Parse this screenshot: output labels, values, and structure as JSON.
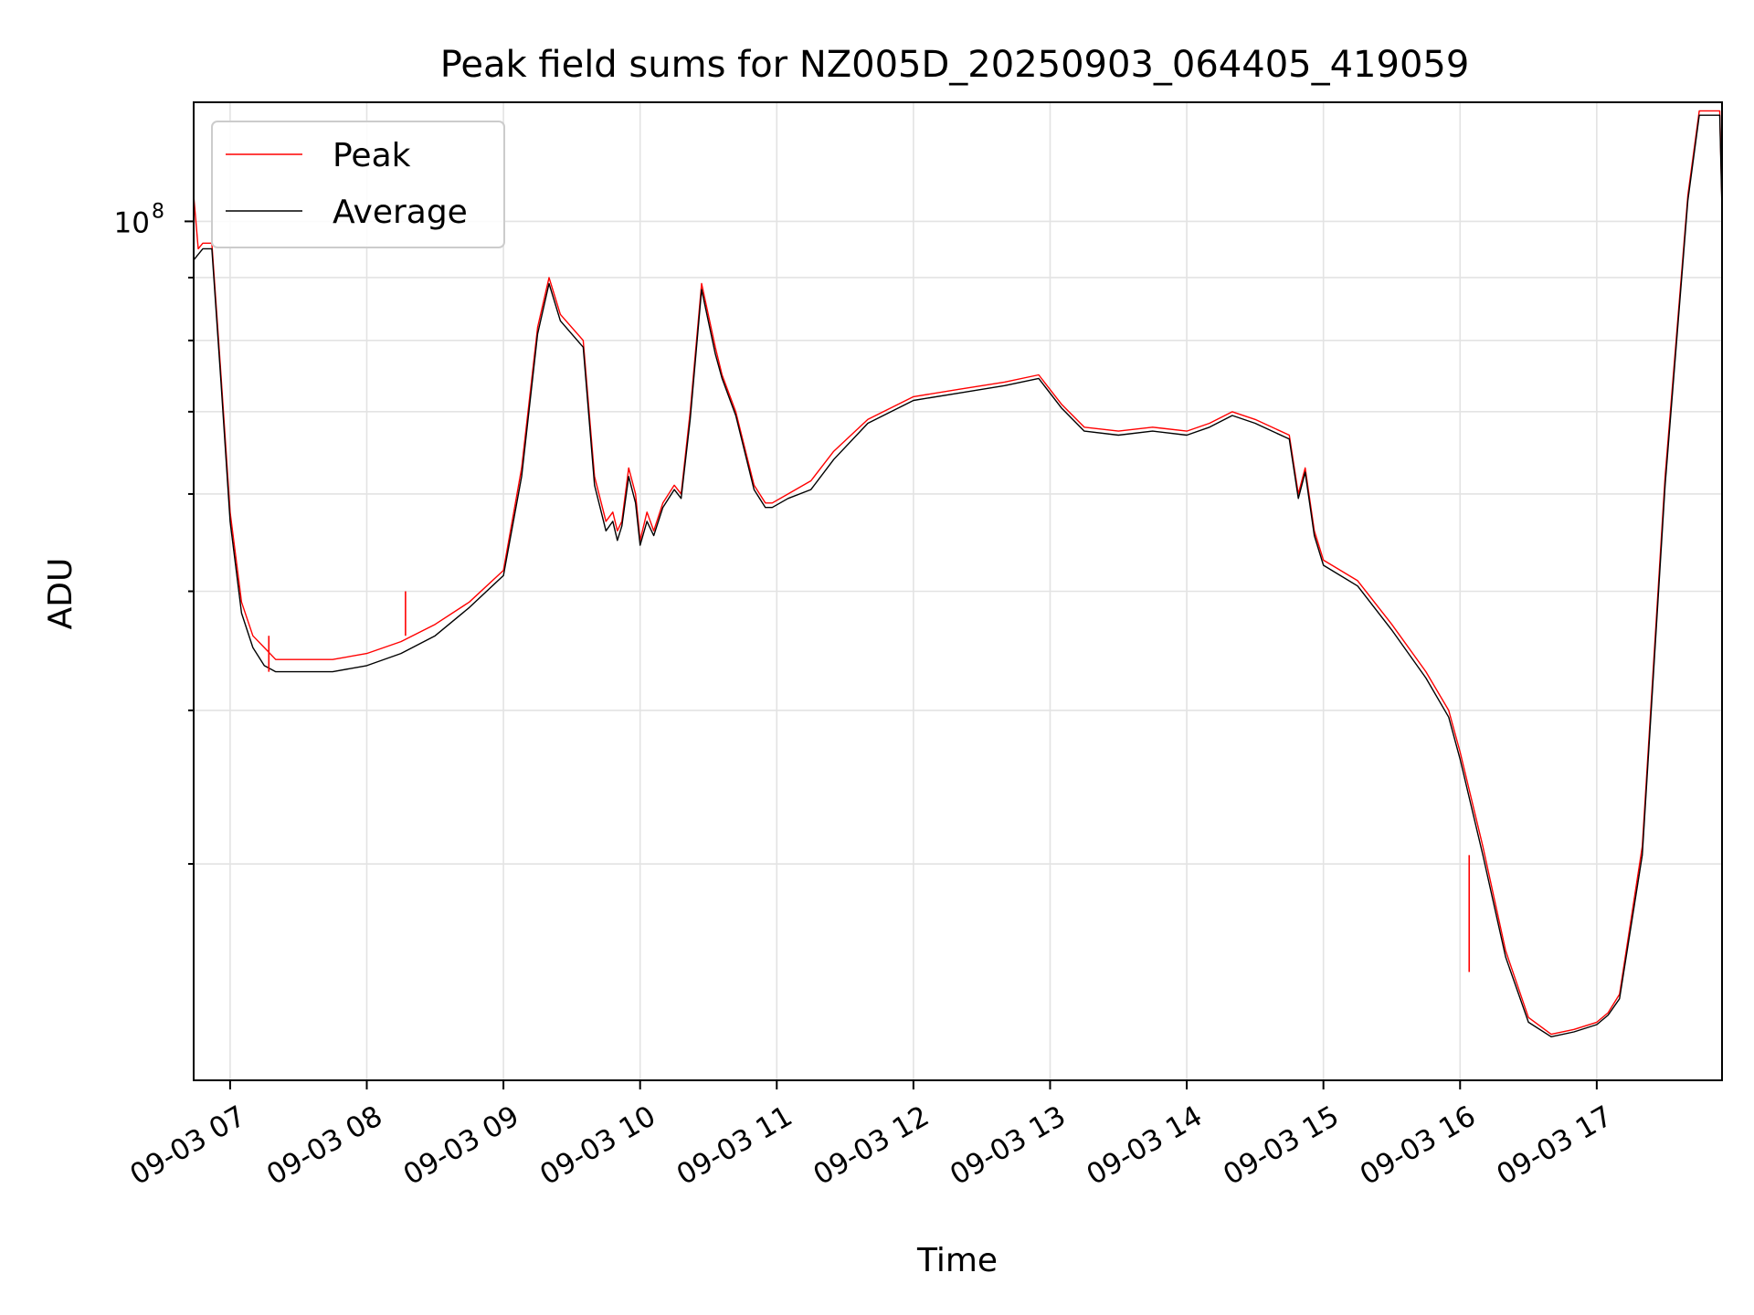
{
  "chart_data": {
    "type": "line",
    "title": "Peak field sums for NZ005D_20250903_064405_419059",
    "xlabel": "Time",
    "ylabel": "ADU",
    "yscale": "log",
    "grid": true,
    "legend_position": "top-left",
    "xlim": [
      "2025-09-03 06:44",
      "2025-09-03 17:55"
    ],
    "ylim": [
      20000000,
      125000000
    ],
    "x_tick_labels": [
      "09-03 07",
      "09-03 08",
      "09-03 09",
      "09-03 10",
      "09-03 11",
      "09-03 12",
      "09-03 13",
      "09-03 14",
      "09-03 15",
      "09-03 16",
      "09-03 17"
    ],
    "x_ticks": [
      "2025-09-03 07:00",
      "2025-09-03 08:00",
      "2025-09-03 09:00",
      "2025-09-03 10:00",
      "2025-09-03 11:00",
      "2025-09-03 12:00",
      "2025-09-03 13:00",
      "2025-09-03 14:00",
      "2025-09-03 15:00",
      "2025-09-03 16:00",
      "2025-09-03 17:00"
    ],
    "y_tick_base": "10",
    "y_tick_exponent": "8",
    "y_tick_value": 100000000,
    "y_minor_ticks": [
      30000000,
      40000000,
      50000000,
      60000000,
      70000000,
      80000000,
      90000000
    ],
    "x": [
      "2025-09-03 06:44",
      "2025-09-03 06:46",
      "2025-09-03 06:48",
      "2025-09-03 06:52",
      "2025-09-03 06:56",
      "2025-09-03 07:00",
      "2025-09-03 07:05",
      "2025-09-03 07:10",
      "2025-09-03 07:15",
      "2025-09-03 07:20",
      "2025-09-03 07:30",
      "2025-09-03 07:45",
      "2025-09-03 08:00",
      "2025-09-03 08:15",
      "2025-09-03 08:30",
      "2025-09-03 08:45",
      "2025-09-03 09:00",
      "2025-09-03 09:08",
      "2025-09-03 09:15",
      "2025-09-03 09:20",
      "2025-09-03 09:25",
      "2025-09-03 09:35",
      "2025-09-03 09:40",
      "2025-09-03 09:45",
      "2025-09-03 09:48",
      "2025-09-03 09:50",
      "2025-09-03 09:52",
      "2025-09-03 09:55",
      "2025-09-03 09:58",
      "2025-09-03 10:00",
      "2025-09-03 10:03",
      "2025-09-03 10:06",
      "2025-09-03 10:10",
      "2025-09-03 10:15",
      "2025-09-03 10:18",
      "2025-09-03 10:22",
      "2025-09-03 10:27",
      "2025-09-03 10:33",
      "2025-09-03 10:36",
      "2025-09-03 10:42",
      "2025-09-03 10:50",
      "2025-09-03 10:55",
      "2025-09-03 10:58",
      "2025-09-03 11:05",
      "2025-09-03 11:15",
      "2025-09-03 11:25",
      "2025-09-03 11:40",
      "2025-09-03 12:00",
      "2025-09-03 12:20",
      "2025-09-03 12:40",
      "2025-09-03 12:55",
      "2025-09-03 13:05",
      "2025-09-03 13:15",
      "2025-09-03 13:30",
      "2025-09-03 13:45",
      "2025-09-03 14:00",
      "2025-09-03 14:10",
      "2025-09-03 14:20",
      "2025-09-03 14:30",
      "2025-09-03 14:45",
      "2025-09-03 14:49",
      "2025-09-03 14:52",
      "2025-09-03 14:56",
      "2025-09-03 15:00",
      "2025-09-03 15:15",
      "2025-09-03 15:30",
      "2025-09-03 15:45",
      "2025-09-03 15:55",
      "2025-09-03 16:00",
      "2025-09-03 16:10",
      "2025-09-03 16:20",
      "2025-09-03 16:30",
      "2025-09-03 16:40",
      "2025-09-03 16:50",
      "2025-09-03 17:00",
      "2025-09-03 17:05",
      "2025-09-03 17:10",
      "2025-09-03 17:20",
      "2025-09-03 17:30",
      "2025-09-03 17:40",
      "2025-09-03 17:45",
      "2025-09-03 17:50",
      "2025-09-03 17:54",
      "2025-09-03 17:55"
    ],
    "series": [
      {
        "name": "Peak",
        "color": "#ff0000",
        "values": [
          105000000,
          95000000,
          96000000,
          96000000,
          75000000,
          58000000,
          49000000,
          46000000,
          45000000,
          44000000,
          44000000,
          44000000,
          44500000,
          45500000,
          47000000,
          49000000,
          52000000,
          63000000,
          82000000,
          90000000,
          84000000,
          80000000,
          62000000,
          57000000,
          58000000,
          56000000,
          57000000,
          63000000,
          60000000,
          55000000,
          58000000,
          56000000,
          59000000,
          61000000,
          60000000,
          70000000,
          89000000,
          79000000,
          75000000,
          70000000,
          61000000,
          59000000,
          59000000,
          60000000,
          61500000,
          65000000,
          69000000,
          72000000,
          73000000,
          74000000,
          75000000,
          71000000,
          68000000,
          67500000,
          68000000,
          67500000,
          68500000,
          70000000,
          69000000,
          67000000,
          60000000,
          63000000,
          56000000,
          53000000,
          51000000,
          47000000,
          43000000,
          40000000,
          37000000,
          31000000,
          25500000,
          22500000,
          21800000,
          22000000,
          22300000,
          22700000,
          23500000,
          31000000,
          62000000,
          105000000,
          123000000,
          123000000,
          123000000,
          103000000
        ]
      },
      {
        "name": "Average",
        "color": "#000000",
        "values": [
          93000000,
          94000000,
          95000000,
          95000000,
          74000000,
          57000000,
          48000000,
          45000000,
          43500000,
          43000000,
          43000000,
          43000000,
          43500000,
          44500000,
          46000000,
          48500000,
          51500000,
          62000000,
          81000000,
          89000000,
          83000000,
          79000000,
          61000000,
          56000000,
          57000000,
          55000000,
          56500000,
          62000000,
          59000000,
          54500000,
          57000000,
          55500000,
          58500000,
          60500000,
          59500000,
          69000000,
          88000000,
          78000000,
          74500000,
          69500000,
          60500000,
          58500000,
          58500000,
          59500000,
          60500000,
          64000000,
          68500000,
          71500000,
          72500000,
          73500000,
          74500000,
          70500000,
          67500000,
          67000000,
          67500000,
          67000000,
          68000000,
          69500000,
          68500000,
          66500000,
          59500000,
          62500000,
          55500000,
          52500000,
          50500000,
          46500000,
          42500000,
          39500000,
          36500000,
          30500000,
          25200000,
          22300000,
          21700000,
          21900000,
          22200000,
          22600000,
          23300000,
          30500000,
          61000000,
          104000000,
          122000000,
          122000000,
          122000000,
          102000000
        ]
      }
    ],
    "annotations_peaks": [
      {
        "x": "2025-09-03 07:17",
        "value": 46000000
      },
      {
        "x": "2025-09-03 08:17",
        "value": 50000000
      },
      {
        "x": "2025-09-03 16:04",
        "value": 24500000
      }
    ]
  }
}
